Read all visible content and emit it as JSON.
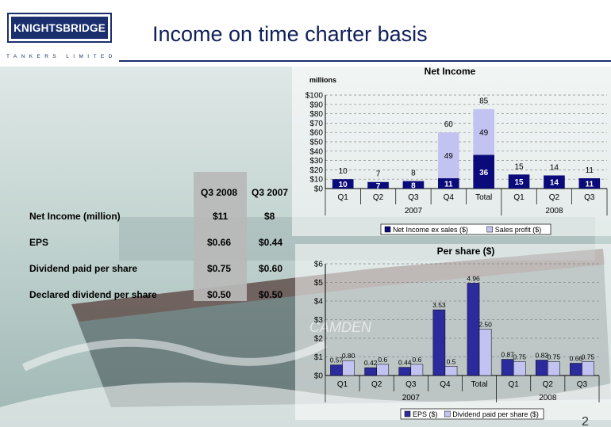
{
  "logo": {
    "name": "KNIGHTSBRIDGE",
    "sub": "TANKERS LIMITED"
  },
  "slide": {
    "title": "Income on time charter basis",
    "page_number": "2"
  },
  "table": {
    "headers": [
      "Q3 2008",
      "Q3 2007"
    ],
    "rows": [
      {
        "label": "Net Income (million)",
        "q3_2008": "$11",
        "q3_2007": "$8"
      },
      {
        "label": "EPS",
        "q3_2008": "$0.66",
        "q3_2007": "$0.44"
      },
      {
        "label": "Dividend paid per share",
        "q3_2008": "$0.75",
        "q3_2007": "$0.60"
      },
      {
        "label": "Declared dividend per share",
        "q3_2008": "$0.50",
        "q3_2007": "$0.50"
      }
    ]
  },
  "chart_data": [
    {
      "type": "bar",
      "stacked": true,
      "title": "Net Income",
      "ylabel": "millions",
      "ylim": [
        0,
        100
      ],
      "yticks": [
        "$0",
        "$10",
        "$20",
        "$30",
        "$40",
        "$50",
        "$60",
        "$70",
        "$80",
        "$90",
        "$100"
      ],
      "categories": [
        "Q1",
        "Q2",
        "Q3",
        "Q4",
        "Total",
        "Q1",
        "Q2",
        "Q3"
      ],
      "groups": [
        {
          "label": "2007",
          "span": 5
        },
        {
          "label": "2008",
          "span": 3
        }
      ],
      "series": [
        {
          "name": "Net Income ex sales ($)",
          "values": [
            10,
            7,
            8,
            11,
            36,
            15,
            14,
            11
          ],
          "labels": [
            "10",
            "7",
            "8",
            "11",
            "36",
            "15",
            "14",
            "11"
          ],
          "color": "#0a0a7a"
        },
        {
          "name": "Sales profit ($)",
          "values": [
            0,
            0,
            0,
            49,
            49,
            0,
            0,
            0
          ],
          "labels": [
            "",
            "",
            "",
            "49",
            "49",
            "",
            "",
            ""
          ],
          "color": "#c3c3f2"
        }
      ],
      "totals": [
        "10",
        "7",
        "8",
        "60",
        "85",
        "15",
        "14",
        "11"
      ],
      "grid": true,
      "legend": "bottom"
    },
    {
      "type": "bar",
      "title": "Per share ($)",
      "ylim": [
        0,
        6
      ],
      "yticks": [
        "$0",
        "$1",
        "$2",
        "$3",
        "$4",
        "$5",
        "$6"
      ],
      "categories": [
        "Q1",
        "Q2",
        "Q3",
        "Q4",
        "Total",
        "Q1",
        "Q2",
        "Q3"
      ],
      "groups": [
        {
          "label": "2007",
          "span": 5
        },
        {
          "label": "2008",
          "span": 3
        }
      ],
      "series": [
        {
          "name": "EPS ($)",
          "values": [
            0.57,
            0.42,
            0.44,
            3.53,
            4.96,
            0.87,
            0.83,
            0.66
          ],
          "labels": [
            "0.57",
            "0.42",
            "0.44",
            "3.53",
            "4.96",
            "0.87",
            "0.83",
            "0.66"
          ],
          "color": "#2b2b9e"
        },
        {
          "name": "Dividend paid per share ($)",
          "values": [
            0.8,
            0.6,
            0.6,
            0.5,
            2.5,
            0.75,
            0.75,
            0.75
          ],
          "labels": [
            "0.80",
            "0.6",
            "0.6",
            "0.5",
            "2.50",
            "0.75",
            "0.75",
            "0.75"
          ],
          "color": "#c3c3f2"
        }
      ],
      "grid": true,
      "legend": "bottom"
    }
  ]
}
